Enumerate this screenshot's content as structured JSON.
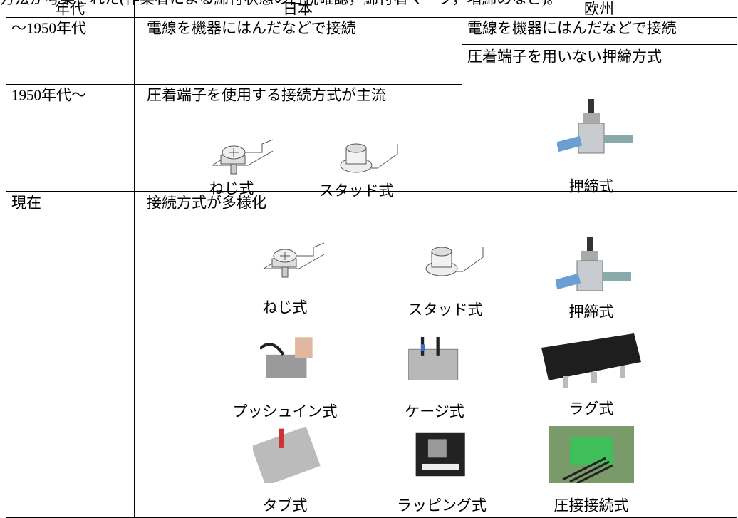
{
  "intro": "方法が考案された(作業者による締付状態の目視確認，締付者マーク，増締めなど)。",
  "table": {
    "header": [
      "年代",
      "日本",
      "欧州"
    ],
    "rows": [
      {
        "era": "～1950年代",
        "japan": "電線を機器にはんだなどで接続",
        "europe": [
          "電線を機器にはんだなどで接続",
          "圧着端子を用いない押締方式"
        ]
      },
      {
        "era": "1950年代～",
        "japan": "圧着端子を使用する接続方式が主流",
        "japan_captions": [
          "ねじ式",
          "スタッド式"
        ],
        "europe_captions": [
          "押締式"
        ]
      },
      {
        "era": "現在",
        "japan": "接続方式が多様化",
        "captions": [
          "ねじ式",
          "スタッド式",
          "押締式",
          "プッシュイン式",
          "ケージ式",
          "ラグ式",
          "タブ式",
          "ラッピング式",
          "圧接接続式"
        ]
      }
    ]
  }
}
